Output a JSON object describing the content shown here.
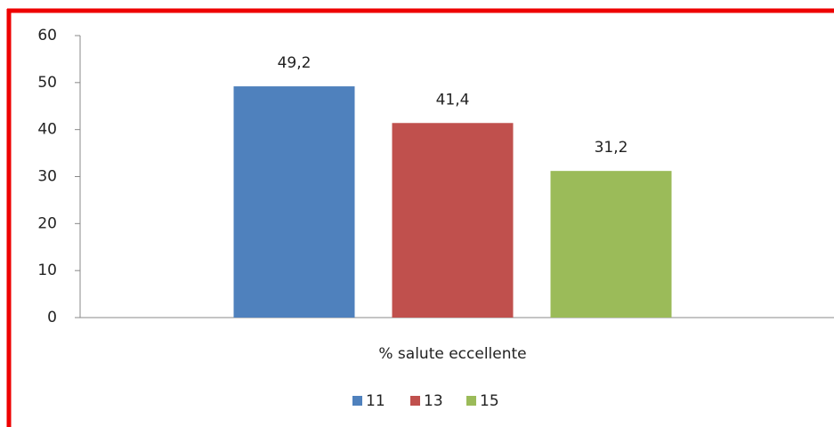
{
  "chart_data": {
    "type": "bar",
    "categories": [
      "% salute eccellente"
    ],
    "series": [
      {
        "name": "11",
        "color": "#4f81bd",
        "values": [
          49.2
        ],
        "value_labels": [
          "49,2"
        ]
      },
      {
        "name": "13",
        "color": "#c0504d",
        "values": [
          41.4
        ],
        "value_labels": [
          "41,4"
        ]
      },
      {
        "name": "15",
        "color": "#9bbb59",
        "values": [
          31.2
        ],
        "value_labels": [
          "31,2"
        ]
      }
    ],
    "ylim": [
      0,
      60
    ],
    "yticks": [
      0,
      10,
      20,
      30,
      40,
      50,
      60
    ],
    "grid": false,
    "legend": "bottom"
  }
}
